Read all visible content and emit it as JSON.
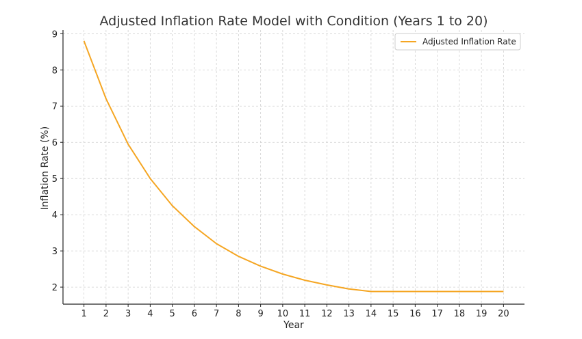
{
  "chart_data": {
    "type": "line",
    "title": "Adjusted Inflation Rate Model with Condition (Years 1 to 20)",
    "xlabel": "Year",
    "ylabel": "Inflation Rate (%)",
    "x": [
      1,
      2,
      3,
      4,
      5,
      6,
      7,
      8,
      9,
      10,
      11,
      12,
      13,
      14,
      15,
      16,
      17,
      18,
      19,
      20
    ],
    "xlim": [
      0.05,
      20.95
    ],
    "ylim": [
      1.53,
      9.1
    ],
    "yticks": [
      2,
      3,
      4,
      5,
      6,
      7,
      8,
      9
    ],
    "grid": true,
    "legend_position": "top-right",
    "series": [
      {
        "name": "Adjusted Inflation Rate",
        "color": "#f5a623",
        "values": [
          8.8,
          7.2,
          5.95,
          5.0,
          4.25,
          3.67,
          3.2,
          2.85,
          2.58,
          2.36,
          2.19,
          2.06,
          1.95,
          1.88,
          1.88,
          1.88,
          1.88,
          1.88,
          1.88,
          1.88
        ]
      }
    ]
  }
}
